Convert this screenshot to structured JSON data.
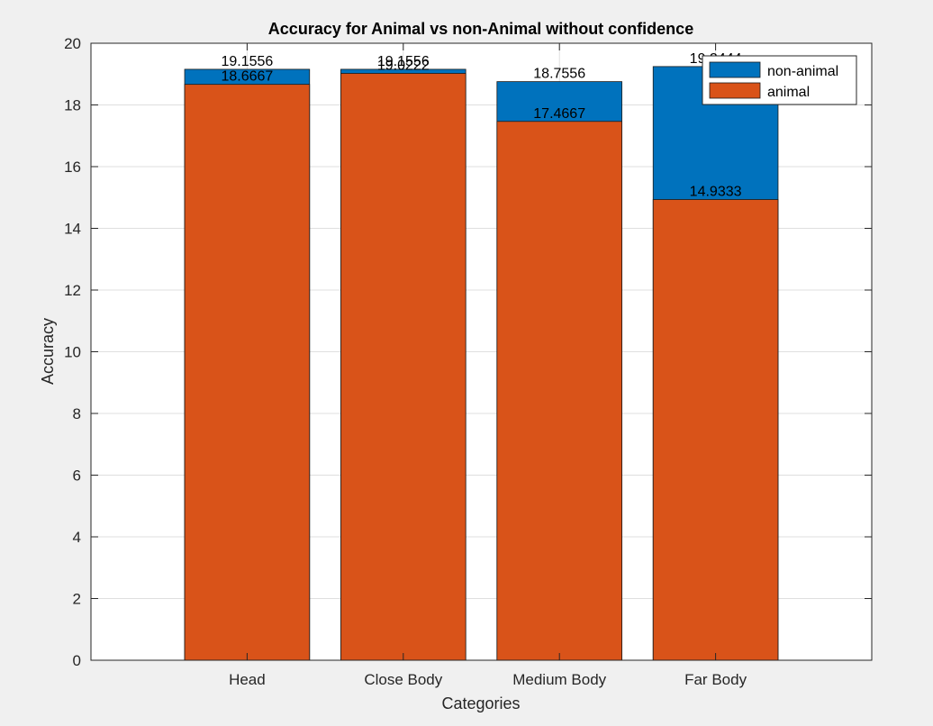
{
  "chart_data": {
    "type": "bar",
    "stacked": false,
    "overlaid": true,
    "title": "Accuracy for Animal vs non-Animal without confidence",
    "xlabel": "Categories",
    "ylabel": "Accuracy",
    "categories": [
      "Head",
      "Close Body",
      "Medium Body",
      "Far Body"
    ],
    "ylim": [
      0,
      20
    ],
    "yticks": [
      0,
      2,
      4,
      6,
      8,
      10,
      12,
      14,
      16,
      18,
      20
    ],
    "xlim": [
      0,
      5
    ],
    "grid": true,
    "legend_position": "top-right",
    "series": [
      {
        "name": "non-animal",
        "color": "#0072BD",
        "values": [
          19.1556,
          19.1556,
          18.7556,
          19.2444
        ],
        "labels": [
          "19.1556",
          "19.1556",
          "18.7556",
          "19.2444"
        ]
      },
      {
        "name": "animal",
        "color": "#D95319",
        "values": [
          18.6667,
          19.0222,
          17.4667,
          14.9333
        ],
        "labels": [
          "18.6667",
          "19.0222",
          "17.4667",
          "14.9333"
        ]
      }
    ]
  }
}
